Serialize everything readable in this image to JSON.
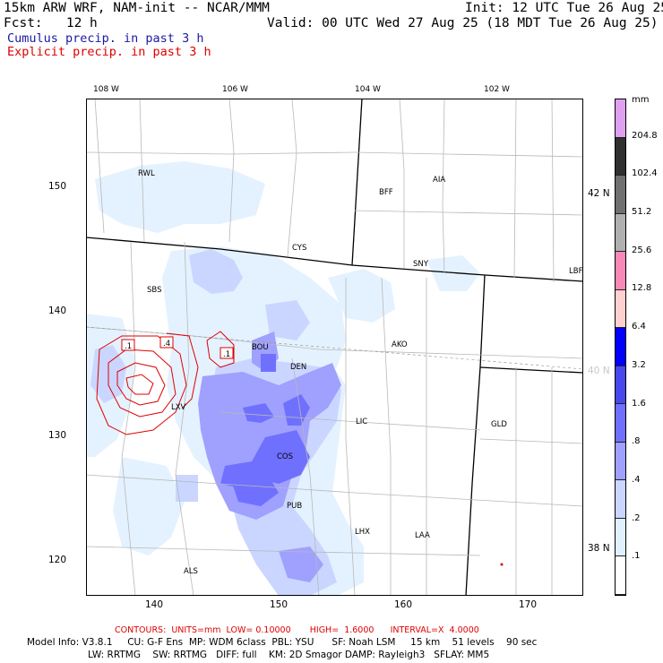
{
  "header": {
    "model_line": "15km ARW WRF, NAM-init -- NCAR/MMM",
    "fcst_line": "Fcst:   12 h",
    "init_line": "Init: 12 UTC Tue 26 Aug 25",
    "valid_line": "Valid: 00 UTC Wed 27 Aug 25 (18 MDT Tue 26 Aug 25)",
    "cumulus_label": "Cumulus precip. in past 3 h",
    "explicit_label": "Explicit precip. in past 3 h"
  },
  "map": {
    "top_lon_labels": [
      "108 W",
      "106 W",
      "104 W",
      "102 W"
    ],
    "left_axis_labels": [
      "150",
      "140",
      "130",
      "120"
    ],
    "bottom_axis_labels": [
      "140",
      "150",
      "160",
      "170"
    ],
    "right_lat_labels": [
      "42 N",
      "40 N",
      "38 N"
    ],
    "stations": [
      "RWL",
      "BFF",
      "AIA",
      "CYS",
      "SNY",
      "LBF",
      "SBS",
      "AKO",
      "BOU",
      "DEN",
      "LXV",
      "LIC",
      "GLD",
      "COS",
      "PUB",
      "LHX",
      "LAA",
      "ALS"
    ],
    "contour_labels": [
      ".1",
      ".4",
      ".1"
    ]
  },
  "colorbar": {
    "unit": "mm",
    "labels": [
      "204.8",
      "102.4",
      "51.2",
      "25.6",
      "12.8",
      "6.4",
      "3.2",
      "1.6",
      ".8",
      ".4",
      ".2",
      ".1"
    ],
    "colors": [
      "#e0a0f0",
      "#303030",
      "#707070",
      "#b0b0b0",
      "#f888b8",
      "#ffd0d0",
      "#0000ff",
      "#4848ee",
      "#7070ff",
      "#a0a0ff",
      "#cad6ff",
      "#e0f0ff",
      "#ffffff"
    ]
  },
  "footer": {
    "contours_line": "CONTOURS:  UNITS=mm  LOW= 0.10000       HIGH=  1.6000      INTERVAL=X  4.0000",
    "model_info_1": "Model Info: V3.8.1     CU: G-F Ens  MP: WDM 6class  PBL: YSU      SF: Noah LSM     15 km    51 levels    90 sec",
    "model_info_2": "LW: RRTMG    SW: RRTMG   DIFF: full    KM: 2D Smagor DAMP: Rayleigh3   SFLAY: MM5"
  }
}
